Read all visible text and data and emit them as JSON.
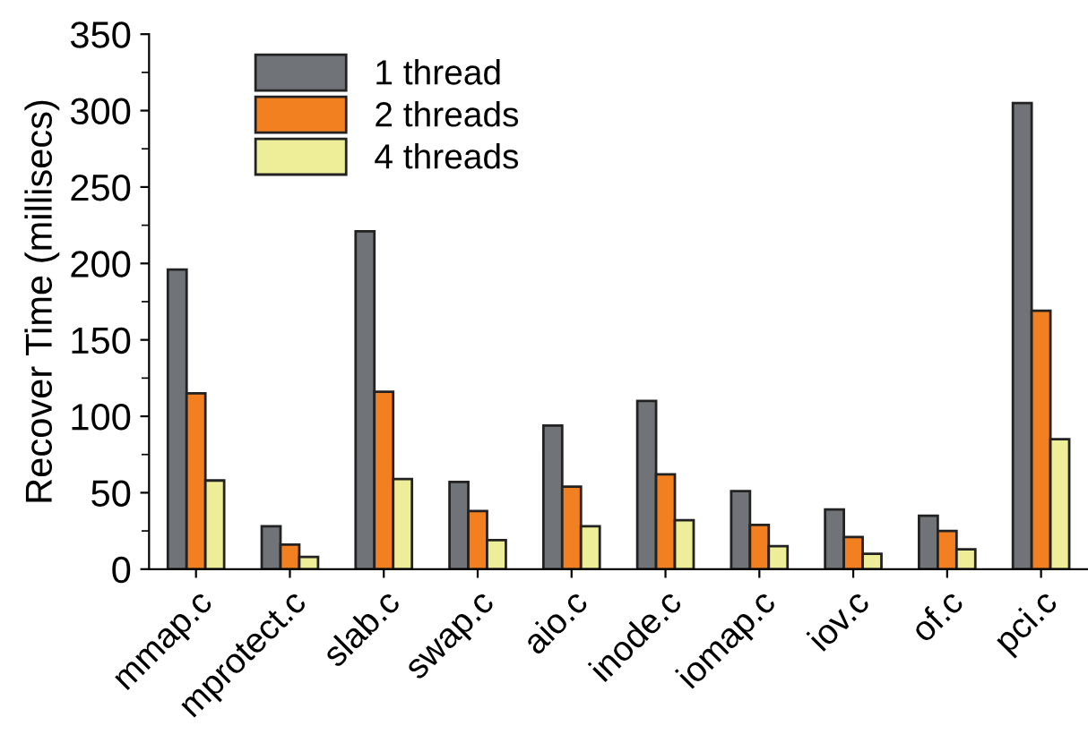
{
  "chart_data": {
    "type": "bar",
    "ylabel": "Recover Time (millisecs)",
    "categories": [
      "mmap.c",
      "mprotect.c",
      "slab.c",
      "swap.c",
      "aio.c",
      "inode.c",
      "iomap.c",
      "iov.c",
      "of.c",
      "pci.c"
    ],
    "series": [
      {
        "name": "1 thread",
        "color": "#707478",
        "values": [
          196,
          28,
          221,
          57,
          94,
          110,
          51,
          39,
          35,
          305
        ]
      },
      {
        "name": "2 threads",
        "color": "#f28020",
        "values": [
          115,
          16,
          116,
          38,
          54,
          62,
          29,
          21,
          25,
          169
        ]
      },
      {
        "name": "4 threads",
        "color": "#eeee99",
        "values": [
          58,
          8,
          59,
          19,
          28,
          32,
          15,
          10,
          13,
          85
        ]
      }
    ],
    "ylim": [
      0,
      350
    ],
    "yticks": [
      0,
      50,
      100,
      150,
      200,
      250,
      300,
      350
    ],
    "grid": false,
    "legend": "top left"
  }
}
